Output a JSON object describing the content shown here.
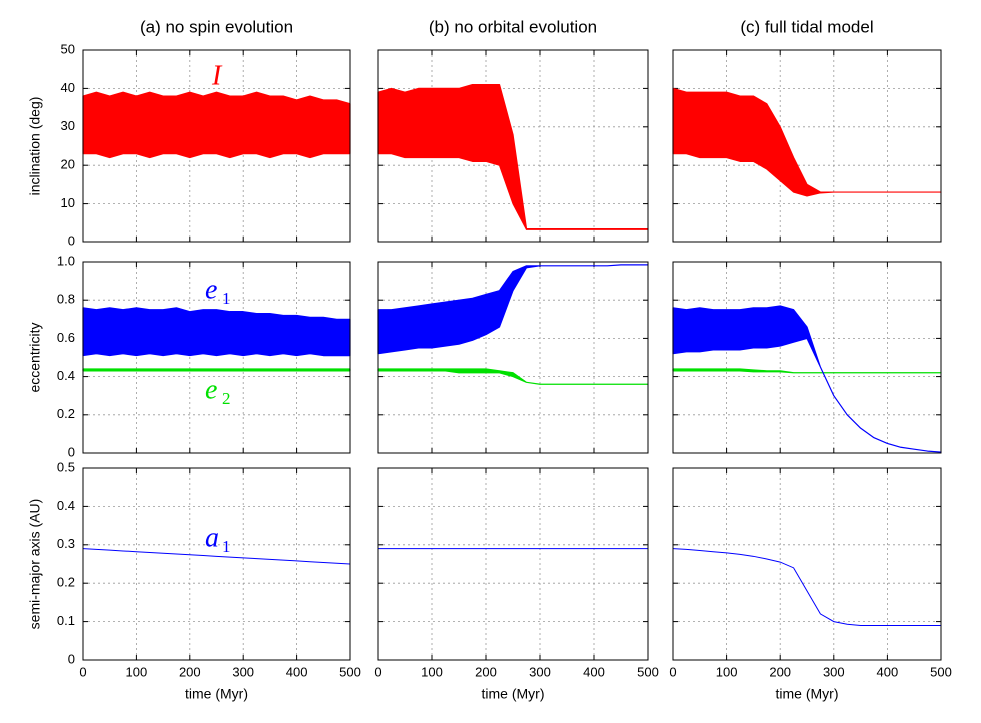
{
  "chart_data": [
    {
      "type": "band",
      "title": "(a) no spin evolution",
      "ylabel": "inclination (deg)",
      "xlim": [
        0,
        500
      ],
      "xticks": [
        0,
        100,
        200,
        300,
        400,
        500
      ],
      "ylim": [
        0,
        50
      ],
      "yticks": [
        0,
        10,
        20,
        30,
        40,
        50
      ],
      "grid": true,
      "show_yticklabels": true,
      "show_xticklabels": false,
      "x": [
        0,
        25,
        50,
        75,
        100,
        125,
        150,
        175,
        200,
        225,
        250,
        275,
        300,
        325,
        350,
        375,
        400,
        425,
        450,
        475,
        500
      ],
      "series": [
        {
          "name": "I",
          "color": "#ff0000",
          "values": [
            38,
            39,
            38,
            39,
            38,
            39,
            38,
            38,
            39,
            38,
            39,
            38,
            38,
            39,
            38,
            38,
            37,
            38,
            37,
            37,
            36
          ],
          "lower": [
            23,
            23,
            22,
            23,
            23,
            22,
            23,
            23,
            22,
            23,
            23,
            22,
            23,
            23,
            22,
            23,
            23,
            22,
            23,
            23,
            23
          ]
        }
      ]
    },
    {
      "type": "band",
      "title": "(b) no orbital evolution",
      "xlim": [
        0,
        500
      ],
      "xticks": [
        0,
        100,
        200,
        300,
        400,
        500
      ],
      "ylim": [
        0,
        50
      ],
      "yticks": [
        0,
        10,
        20,
        30,
        40,
        50
      ],
      "grid": true,
      "show_yticklabels": false,
      "show_xticklabels": false,
      "x": [
        0,
        25,
        50,
        75,
        100,
        125,
        150,
        175,
        200,
        225,
        250,
        275,
        300,
        325,
        350,
        375,
        400,
        425,
        450,
        475,
        500
      ],
      "series": [
        {
          "color": "#ff0000",
          "values": [
            39,
            40,
            39,
            40,
            40,
            40,
            40,
            41,
            41,
            41,
            28,
            3.5,
            3.5,
            3.5,
            3.5,
            3.5,
            3.5,
            3.5,
            3.5,
            3.5,
            3.5
          ],
          "lower": [
            23,
            23,
            22,
            22,
            22,
            22,
            22,
            21,
            21,
            20,
            10,
            3.3,
            3.3,
            3.3,
            3.3,
            3.3,
            3.3,
            3.3,
            3.3,
            3.3,
            3.3
          ]
        }
      ]
    },
    {
      "type": "band",
      "title": "(c) full tidal model",
      "xlim": [
        0,
        500
      ],
      "xticks": [
        0,
        100,
        200,
        300,
        400,
        500
      ],
      "ylim": [
        0,
        50
      ],
      "yticks": [
        0,
        10,
        20,
        30,
        40,
        50
      ],
      "grid": true,
      "show_yticklabels": false,
      "show_xticklabels": false,
      "x": [
        0,
        25,
        50,
        75,
        100,
        125,
        150,
        175,
        200,
        225,
        250,
        275,
        300,
        325,
        350,
        375,
        400,
        425,
        450,
        475,
        500
      ],
      "series": [
        {
          "color": "#ff0000",
          "values": [
            40,
            39,
            39,
            39,
            39,
            38,
            38,
            36,
            30,
            22,
            15,
            13,
            13,
            13,
            13,
            13,
            13,
            13,
            13,
            13,
            13
          ],
          "lower": [
            23,
            23,
            22,
            22,
            22,
            21,
            21,
            19,
            16,
            13,
            12,
            12.8,
            13,
            13,
            13,
            13,
            13,
            13,
            13,
            13,
            13
          ]
        }
      ]
    },
    {
      "type": "band",
      "ylabel": "eccentricity",
      "xlim": [
        0,
        500
      ],
      "xticks": [
        0,
        100,
        200,
        300,
        400,
        500
      ],
      "ylim": [
        0,
        1
      ],
      "yticks": [
        0,
        0.2,
        0.4,
        0.6,
        0.8,
        {
          "value": 1,
          "label": "1.0"
        }
      ],
      "grid": true,
      "show_yticklabels": true,
      "show_xticklabels": false,
      "x": [
        0,
        25,
        50,
        75,
        100,
        125,
        150,
        175,
        200,
        225,
        250,
        275,
        300,
        325,
        350,
        375,
        400,
        425,
        450,
        475,
        500
      ],
      "series": [
        {
          "name": "e",
          "subscript": "1",
          "color": "#0000ff",
          "values": [
            0.76,
            0.75,
            0.76,
            0.75,
            0.76,
            0.75,
            0.75,
            0.76,
            0.74,
            0.75,
            0.75,
            0.74,
            0.74,
            0.73,
            0.73,
            0.72,
            0.72,
            0.71,
            0.71,
            0.7,
            0.7
          ],
          "lower": [
            0.51,
            0.52,
            0.51,
            0.52,
            0.51,
            0.52,
            0.51,
            0.52,
            0.51,
            0.52,
            0.51,
            0.52,
            0.51,
            0.52,
            0.51,
            0.52,
            0.51,
            0.52,
            0.51,
            0.51,
            0.51
          ]
        },
        {
          "name": "e",
          "subscript": "2",
          "color": "#00e000",
          "values": [
            0.44,
            0.44,
            0.44,
            0.44,
            0.44,
            0.44,
            0.44,
            0.44,
            0.44,
            0.44,
            0.44,
            0.44,
            0.44,
            0.44,
            0.44,
            0.44,
            0.44,
            0.44,
            0.44,
            0.44,
            0.44
          ],
          "lower": [
            0.43,
            0.43,
            0.43,
            0.43,
            0.43,
            0.43,
            0.43,
            0.43,
            0.43,
            0.43,
            0.43,
            0.43,
            0.43,
            0.43,
            0.43,
            0.43,
            0.43,
            0.43,
            0.43,
            0.43,
            0.43
          ]
        }
      ]
    },
    {
      "type": "band",
      "xlim": [
        0,
        500
      ],
      "xticks": [
        0,
        100,
        200,
        300,
        400,
        500
      ],
      "ylim": [
        0,
        1
      ],
      "yticks": [
        0,
        0.2,
        0.4,
        0.6,
        0.8,
        {
          "value": 1,
          "label": "1.0"
        }
      ],
      "grid": true,
      "show_yticklabels": false,
      "show_xticklabels": false,
      "x": [
        0,
        25,
        50,
        75,
        100,
        125,
        150,
        175,
        200,
        225,
        250,
        275,
        300,
        325,
        350,
        375,
        400,
        425,
        450,
        475,
        500
      ],
      "series": [
        {
          "color": "#0000ff",
          "values": [
            0.75,
            0.75,
            0.76,
            0.77,
            0.78,
            0.79,
            0.8,
            0.81,
            0.83,
            0.85,
            0.95,
            0.98,
            0.98,
            0.98,
            0.98,
            0.98,
            0.98,
            0.98,
            0.985,
            0.985,
            0.985
          ],
          "lower": [
            0.52,
            0.53,
            0.54,
            0.55,
            0.55,
            0.56,
            0.57,
            0.59,
            0.62,
            0.66,
            0.85,
            0.97,
            0.98,
            0.98,
            0.98,
            0.98,
            0.98,
            0.98,
            0.985,
            0.985,
            0.985
          ]
        },
        {
          "color": "#00e000",
          "values": [
            0.44,
            0.44,
            0.44,
            0.44,
            0.44,
            0.44,
            0.44,
            0.44,
            0.44,
            0.43,
            0.42,
            0.37,
            0.36,
            0.36,
            0.36,
            0.36,
            0.36,
            0.36,
            0.36,
            0.36,
            0.36
          ],
          "lower": [
            0.43,
            0.43,
            0.43,
            0.43,
            0.43,
            0.43,
            0.42,
            0.42,
            0.42,
            0.42,
            0.4,
            0.37,
            0.36,
            0.36,
            0.36,
            0.36,
            0.36,
            0.36,
            0.36,
            0.36,
            0.36
          ]
        }
      ]
    },
    {
      "type": "band",
      "xlim": [
        0,
        500
      ],
      "xticks": [
        0,
        100,
        200,
        300,
        400,
        500
      ],
      "ylim": [
        0,
        1
      ],
      "yticks": [
        0,
        0.2,
        0.4,
        0.6,
        0.8,
        {
          "value": 1,
          "label": "1.0"
        }
      ],
      "grid": true,
      "show_yticklabels": false,
      "show_xticklabels": false,
      "x": [
        0,
        25,
        50,
        75,
        100,
        125,
        150,
        175,
        200,
        225,
        250,
        275,
        300,
        325,
        350,
        375,
        400,
        425,
        450,
        475,
        500
      ],
      "series": [
        {
          "color": "#00e000",
          "values": [
            0.44,
            0.44,
            0.44,
            0.44,
            0.44,
            0.44,
            0.435,
            0.43,
            0.43,
            0.42,
            0.42,
            0.42,
            0.42,
            0.42,
            0.42,
            0.42,
            0.42,
            0.42,
            0.42,
            0.42,
            0.42
          ],
          "lower": [
            0.43,
            0.43,
            0.43,
            0.43,
            0.43,
            0.43,
            0.425,
            0.425,
            0.425,
            0.42,
            0.42,
            0.42,
            0.42,
            0.42,
            0.42,
            0.42,
            0.42,
            0.42,
            0.42,
            0.42,
            0.42
          ]
        },
        {
          "color": "#0000ff",
          "values": [
            0.76,
            0.75,
            0.76,
            0.75,
            0.75,
            0.75,
            0.76,
            0.76,
            0.77,
            0.75,
            0.66,
            0.45,
            0.3,
            0.2,
            0.13,
            0.08,
            0.05,
            0.03,
            0.02,
            0.01,
            0.005
          ],
          "lower": [
            0.52,
            0.53,
            0.53,
            0.54,
            0.54,
            0.54,
            0.55,
            0.55,
            0.56,
            0.58,
            0.6,
            0.45,
            0.3,
            0.2,
            0.13,
            0.08,
            0.05,
            0.03,
            0.02,
            0.01,
            0.005
          ]
        }
      ]
    },
    {
      "type": "line",
      "ylabel": "semi-major axis (AU)",
      "xlabel": "time (Myr)",
      "xlim": [
        0,
        500
      ],
      "xticks": [
        0,
        100,
        200,
        300,
        400,
        500
      ],
      "ylim": [
        0,
        0.5
      ],
      "yticks": [
        0,
        0.1,
        0.2,
        0.3,
        0.4,
        0.5
      ],
      "grid": true,
      "show_yticklabels": true,
      "show_xticklabels": true,
      "x": [
        0,
        25,
        50,
        75,
        100,
        125,
        150,
        175,
        200,
        225,
        250,
        275,
        300,
        325,
        350,
        375,
        400,
        425,
        450,
        475,
        500
      ],
      "series": [
        {
          "name": "a",
          "subscript": "1",
          "color": "#0000ff",
          "values": [
            0.29,
            0.288,
            0.286,
            0.284,
            0.282,
            0.28,
            0.278,
            0.276,
            0.274,
            0.272,
            0.27,
            0.268,
            0.266,
            0.264,
            0.262,
            0.26,
            0.258,
            0.256,
            0.254,
            0.252,
            0.25
          ]
        }
      ]
    },
    {
      "type": "line",
      "xlabel": "time (Myr)",
      "xlim": [
        0,
        500
      ],
      "xticks": [
        0,
        100,
        200,
        300,
        400,
        500
      ],
      "ylim": [
        0,
        0.5
      ],
      "yticks": [
        0,
        0.1,
        0.2,
        0.3,
        0.4,
        0.5
      ],
      "grid": true,
      "show_yticklabels": false,
      "show_xticklabels": true,
      "x": [
        0,
        25,
        50,
        75,
        100,
        125,
        150,
        175,
        200,
        225,
        250,
        275,
        300,
        325,
        350,
        375,
        400,
        425,
        450,
        475,
        500
      ],
      "series": [
        {
          "color": "#0000ff",
          "values": [
            0.29,
            0.29,
            0.29,
            0.29,
            0.29,
            0.29,
            0.29,
            0.29,
            0.29,
            0.29,
            0.29,
            0.29,
            0.29,
            0.29,
            0.29,
            0.29,
            0.29,
            0.29,
            0.29,
            0.29,
            0.29
          ]
        }
      ]
    },
    {
      "type": "line",
      "xlabel": "time (Myr)",
      "xlim": [
        0,
        500
      ],
      "xticks": [
        0,
        100,
        200,
        300,
        400,
        500
      ],
      "ylim": [
        0,
        0.5
      ],
      "yticks": [
        0,
        0.1,
        0.2,
        0.3,
        0.4,
        0.5
      ],
      "grid": true,
      "show_yticklabels": false,
      "show_xticklabels": true,
      "x": [
        0,
        25,
        50,
        75,
        100,
        125,
        150,
        175,
        200,
        225,
        250,
        275,
        300,
        325,
        350,
        375,
        400,
        425,
        450,
        475,
        500
      ],
      "series": [
        {
          "color": "#0000ff",
          "values": [
            0.29,
            0.288,
            0.285,
            0.282,
            0.279,
            0.275,
            0.27,
            0.263,
            0.255,
            0.24,
            0.18,
            0.12,
            0.1,
            0.093,
            0.09,
            0.09,
            0.09,
            0.09,
            0.09,
            0.09,
            0.09
          ]
        }
      ]
    }
  ]
}
